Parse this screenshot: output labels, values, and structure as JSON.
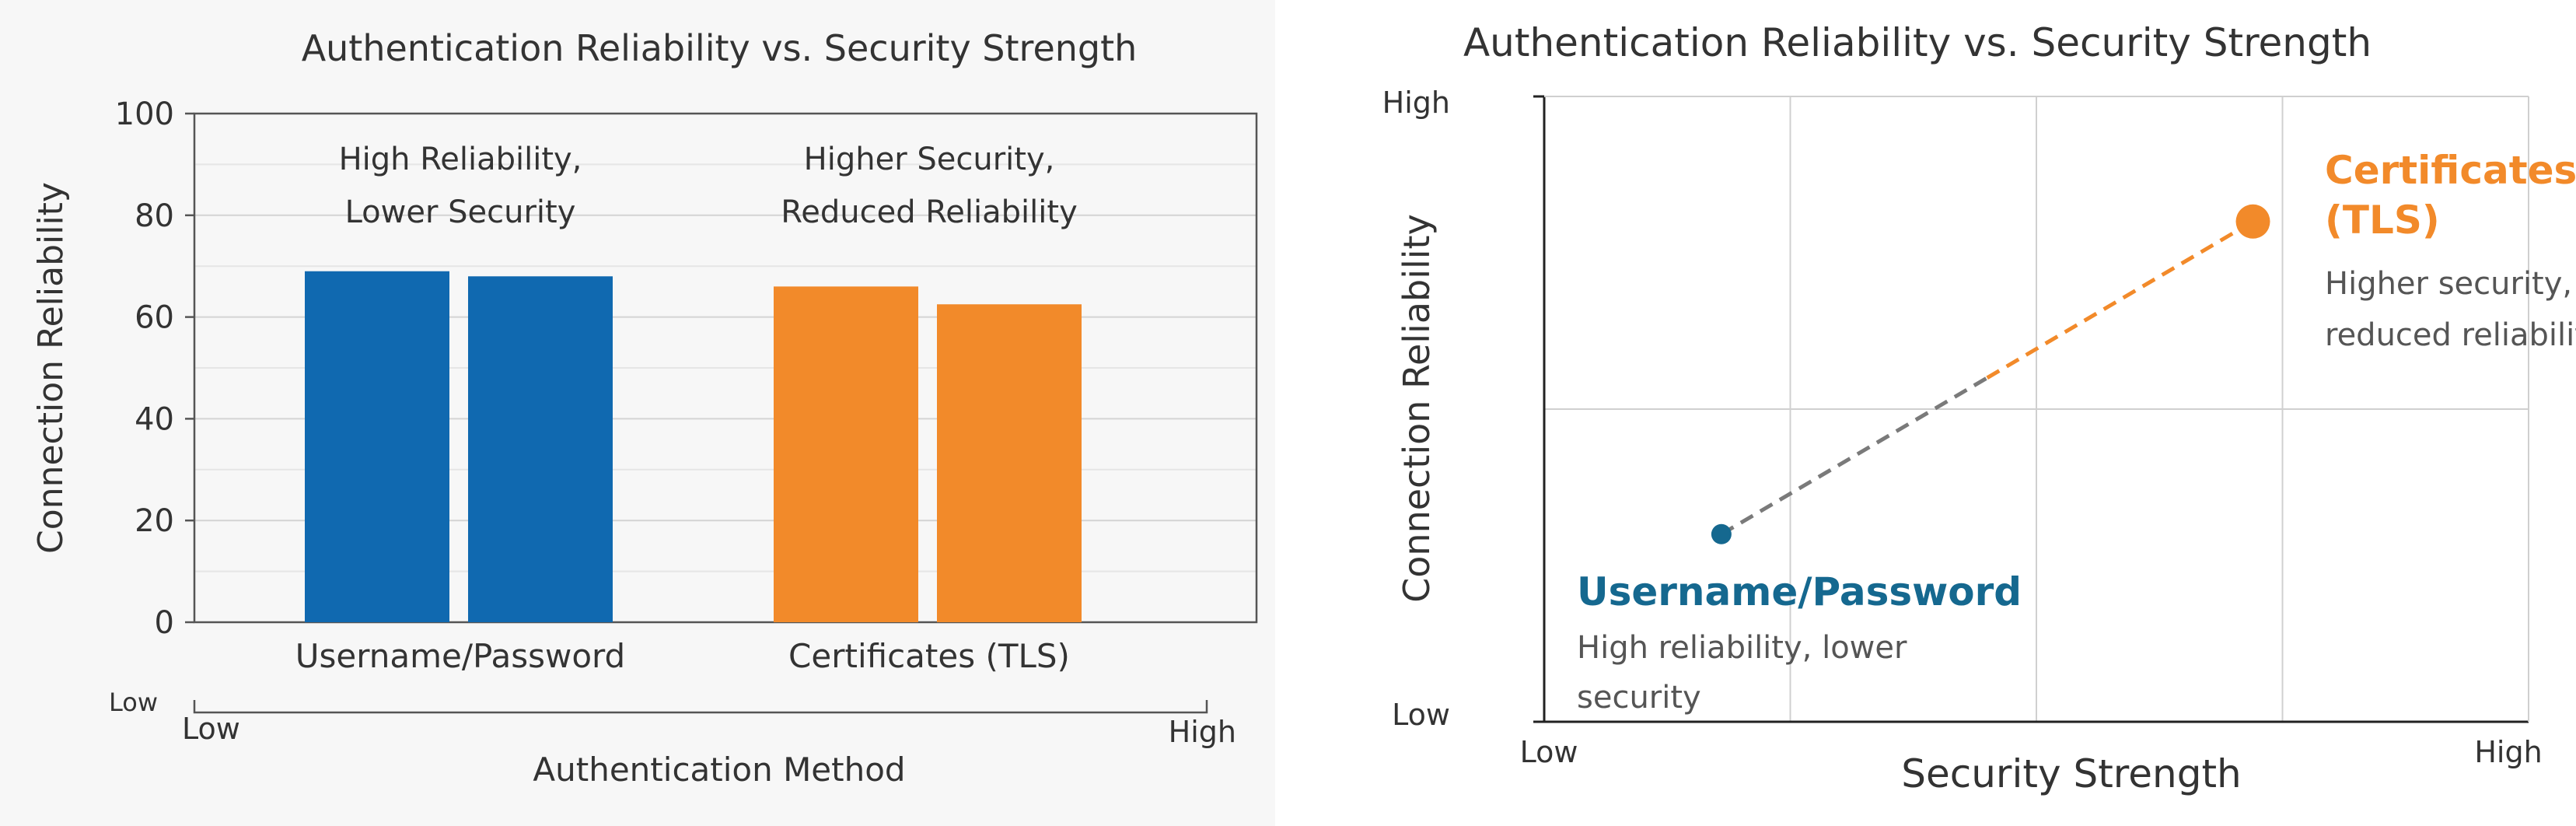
{
  "colors": {
    "blue": "#1069b0",
    "orange": "#f28a2a",
    "navy": "#15688f",
    "text": "#333333",
    "grid": "#d0d0d0"
  },
  "chart_data": [
    {
      "type": "bar",
      "title": "Authentication Reliability vs. Security Strength",
      "xlabel": "Authentication Method",
      "ylabel": "Connection Reliability",
      "ylim": [
        0,
        100
      ],
      "yticks": [
        "0",
        "20",
        "40",
        "60",
        "80",
        "100"
      ],
      "grid": true,
      "categories": [
        "Username/Password",
        "Certificates (TLS)"
      ],
      "bars": [
        {
          "category": "Username/Password",
          "value": 69,
          "color": "#1069b0"
        },
        {
          "category": "Username/Password",
          "value": 68,
          "color": "#1069b0"
        },
        {
          "category": "Certificates (TLS)",
          "value": 66,
          "color": "#f28a2a"
        },
        {
          "category": "Certificates (TLS)",
          "value": 62.5,
          "color": "#f28a2a"
        }
      ],
      "annotations": [
        {
          "lines": [
            "High Reliability,",
            "Lower Security"
          ]
        },
        {
          "lines": [
            "Higher Security,",
            "Reduced Reliability"
          ]
        }
      ],
      "secondary_axis": {
        "low_left": "Low",
        "low": "Low",
        "high": "High"
      }
    },
    {
      "type": "scatter",
      "title": "Authentication Reliability vs. Security Strength",
      "xlabel": "Security Strength",
      "ylabel": "Connection Reliability",
      "xlim": [
        0,
        1
      ],
      "ylim": [
        0,
        1
      ],
      "x_tick_labels": {
        "low": "Low",
        "high": "High"
      },
      "y_tick_labels": {
        "low": "Low",
        "high": "High"
      },
      "grid": true,
      "points": [
        {
          "name_lines": [
            "Username/Password"
          ],
          "desc_lines": [
            "High reliability, lower",
            "security"
          ],
          "x": 0.18,
          "y": 0.3,
          "color": "#15688f"
        },
        {
          "name_lines": [
            "Certificates",
            "(TLS)"
          ],
          "desc_lines": [
            "Higher security,",
            "reduced reliability"
          ],
          "x": 0.72,
          "y": 0.8,
          "color": "#f28a2a"
        }
      ]
    }
  ]
}
